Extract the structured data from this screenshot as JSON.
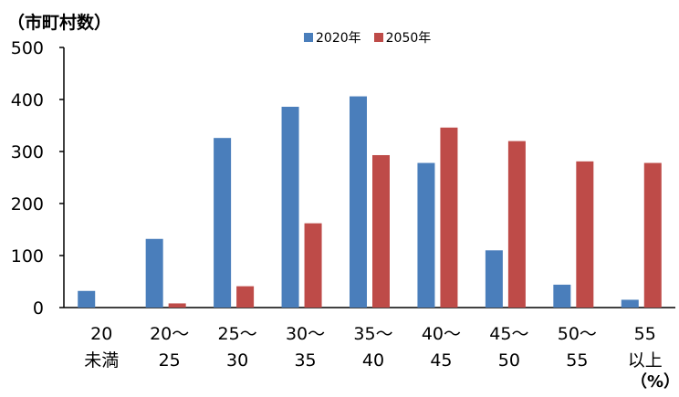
{
  "chart_data": {
    "type": "bar",
    "ylabel": "（市町村数）",
    "xunit": "（%）",
    "ylim": [
      0,
      500
    ],
    "yticks": [
      0,
      100,
      200,
      300,
      400,
      500
    ],
    "categories": [
      [
        "20",
        "未満"
      ],
      [
        "20～",
        "25"
      ],
      [
        "25～",
        "30"
      ],
      [
        "30～",
        "35"
      ],
      [
        "35～",
        "40"
      ],
      [
        "40～",
        "45"
      ],
      [
        "45～",
        "50"
      ],
      [
        "50～",
        "55"
      ],
      [
        "55",
        "以上"
      ]
    ],
    "series": [
      {
        "name": "2020年",
        "color": "#4a7ebb",
        "values": [
          32,
          132,
          326,
          386,
          406,
          278,
          110,
          44,
          15
        ]
      },
      {
        "name": "2050年",
        "color": "#be4b48",
        "values": [
          0,
          8,
          41,
          162,
          293,
          346,
          320,
          281,
          278
        ]
      }
    ],
    "grid": false,
    "legend": "top-center"
  }
}
